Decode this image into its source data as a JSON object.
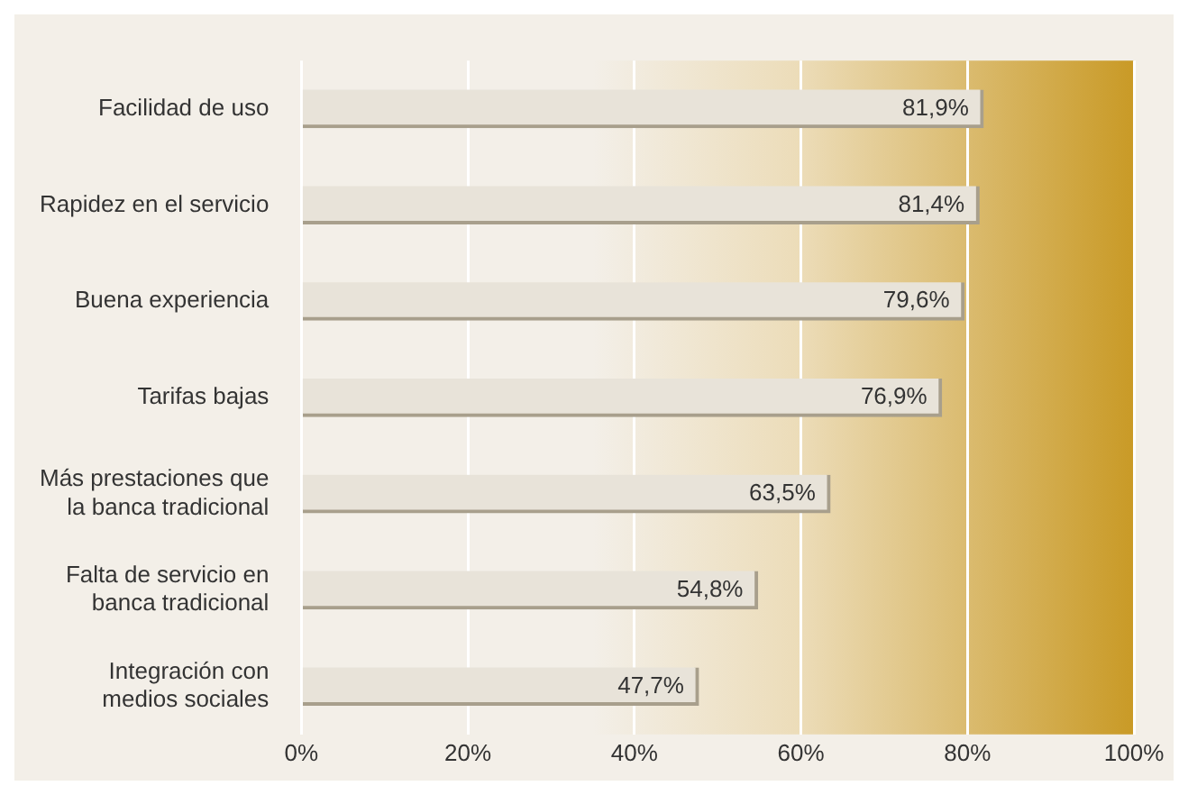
{
  "chart_data": {
    "type": "bar",
    "orientation": "horizontal",
    "categories": [
      "Facilidad de uso",
      "Rapidez en el servicio",
      "Buena experiencia",
      "Tarifas bajas",
      "Más prestaciones que\nla banca tradicional",
      "Falta de servicio en\nbanca tradicional",
      "Integración con\nmedios sociales"
    ],
    "values": [
      81.9,
      81.4,
      79.6,
      76.9,
      63.5,
      54.8,
      47.7
    ],
    "value_labels": [
      "81,9%",
      "81,4%",
      "79,6%",
      "76,9%",
      "63,5%",
      "54,8%",
      "47,7%"
    ],
    "color": "#e8e3d9",
    "xlim": [
      0,
      100
    ],
    "xticks": [
      {
        "value": 0,
        "label": "0%"
      },
      {
        "value": 20,
        "label": "20%"
      },
      {
        "value": 40,
        "label": "40%"
      },
      {
        "value": 60,
        "label": "60%"
      },
      {
        "value": 80,
        "label": "80%"
      },
      {
        "value": 100,
        "label": "100%"
      }
    ],
    "grid": "x",
    "legend": false
  }
}
